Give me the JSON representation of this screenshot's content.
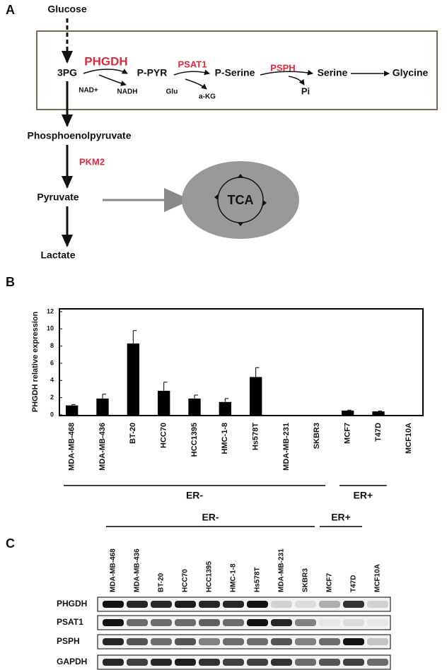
{
  "panel_a": {
    "letter": "A",
    "glucose": "Glucose",
    "enzyme_1": "PHGDH",
    "enzyme_2": "PSAT1",
    "enzyme_3": "PSPH",
    "enzyme_4": "PKM2",
    "metabolites": {
      "3pg": "3PG",
      "ppyr": "P-PYR",
      "pserine": "P-Serine",
      "serine": "Serine",
      "glycine": "Glycine",
      "pep": "Phosphoenolpyruvate",
      "pyruvate": "Pyruvate",
      "lactate": "Lactate",
      "tca": "TCA"
    },
    "cofactors": {
      "nad": "NAD+",
      "nadh": "NADH",
      "glu": "Glu",
      "akg": "a-KG",
      "pi": "Pi"
    }
  },
  "chart_data": {
    "type": "bar",
    "letter": "B",
    "y_label": "PHGDH relative expression",
    "categories": [
      "MDA-MB-468",
      "MDA-MB-436",
      "BT-20",
      "HCC70",
      "HCC1395",
      "HMC-1-8",
      "Hs578T",
      "MDA-MB-231",
      "SKBR3",
      "MCF7",
      "T47D",
      "MCF10A"
    ],
    "values": [
      1.1,
      1.9,
      8.3,
      2.8,
      1.9,
      1.5,
      4.4,
      0,
      0,
      0.5,
      0.4,
      0
    ],
    "errors": [
      0.1,
      0.5,
      1.5,
      1.0,
      0.4,
      0.4,
      1.1,
      0,
      0,
      0.05,
      0.05,
      0
    ],
    "color": "#000000",
    "ylim": [
      0,
      12
    ],
    "yticks": [
      0,
      2,
      4,
      6,
      8,
      10,
      12
    ],
    "groups": [
      {
        "label": "ER-",
        "from": 0,
        "to": 8
      },
      {
        "label": "ER+",
        "from": 9,
        "to": 10
      }
    ]
  },
  "panel_c": {
    "letter": "C",
    "groups": [
      "ER-",
      "ER+"
    ],
    "lanes": [
      "MDA-MB-468",
      "MDA-MB-436",
      "BT-20",
      "HCC70",
      "HCC1395",
      "HMC-1-8",
      "Hs578T",
      "MDA-MB-231",
      "SKBR3",
      "MCF7",
      "T47D",
      "MCF10A"
    ],
    "rows": [
      "PHGDH",
      "PSAT1",
      "PSPH",
      "GAPDH"
    ]
  }
}
